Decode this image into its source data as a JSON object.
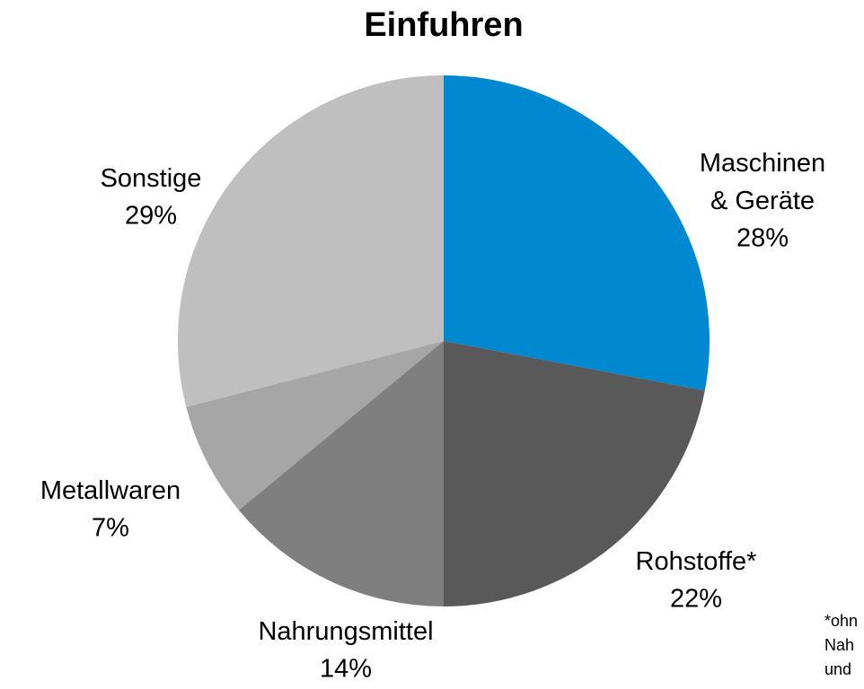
{
  "chart_data": {
    "type": "pie",
    "title": "Einfuhren",
    "categories": [
      "Maschinen\n& Geräte",
      "Rohstoffe*",
      "Nahrungsmittel",
      "Metallwaren",
      "Sonstige"
    ],
    "values": [
      28,
      22,
      14,
      7,
      29
    ],
    "value_labels": [
      "28%",
      "22%",
      "14%",
      "7%",
      "29%"
    ],
    "colors": [
      "#0088d1",
      "#595959",
      "#7f7f7f",
      "#a6a6a6",
      "#bfbfbf"
    ],
    "footnote": [
      "*ohn",
      "Nah",
      "und"
    ]
  }
}
